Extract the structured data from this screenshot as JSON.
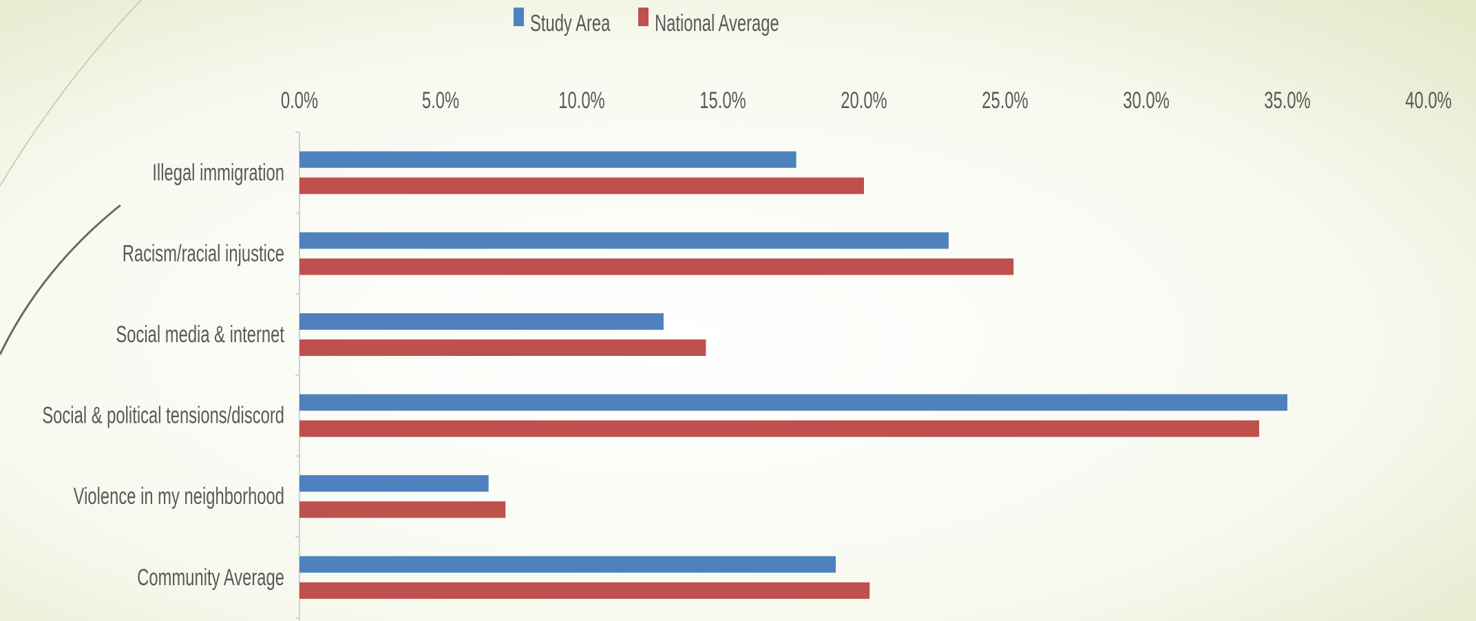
{
  "chart_data": {
    "type": "hbar",
    "categories": [
      "Illegal  immigration",
      "Racism/racial injustice",
      "Social media & internet",
      "Social & political tensions/discord",
      "Violence in my neighborhood",
      "Community Average"
    ],
    "series": [
      {
        "name": "Study Area",
        "color": "#4f81bd",
        "values": [
          17.6,
          23.0,
          12.9,
          35.0,
          6.7,
          19.0
        ]
      },
      {
        "name": "National Average",
        "color": "#c0504d",
        "values": [
          20.0,
          25.3,
          14.4,
          34.0,
          7.3,
          20.2
        ]
      }
    ],
    "xlim": [
      0,
      40
    ],
    "xticks": [
      {
        "value": 0,
        "label": "0.0%"
      },
      {
        "value": 5,
        "label": "5.0%"
      },
      {
        "value": 10,
        "label": "10.0%"
      },
      {
        "value": 15,
        "label": "15.0%"
      },
      {
        "value": 20,
        "label": "20.0%"
      },
      {
        "value": 25,
        "label": "25.0%"
      },
      {
        "value": 30,
        "label": "30.0%"
      },
      {
        "value": 35,
        "label": "35.0%"
      },
      {
        "value": 40,
        "label": "40.0%"
      }
    ],
    "grid": false,
    "legend": "top"
  }
}
